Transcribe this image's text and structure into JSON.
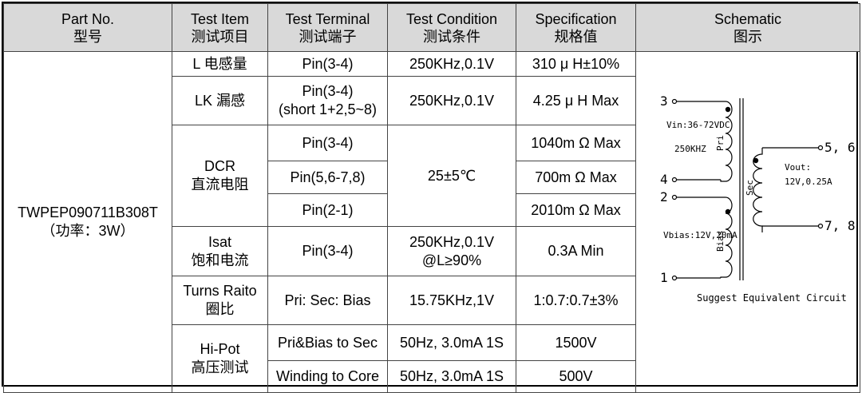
{
  "headers": [
    {
      "en": "Part No.",
      "cn": "型号"
    },
    {
      "en": "Test Item",
      "cn": "测试项目"
    },
    {
      "en": "Test Terminal",
      "cn": "测试端子"
    },
    {
      "en": "Test Condition",
      "cn": "测试条件"
    },
    {
      "en": "Specification",
      "cn": "规格值"
    },
    {
      "en": "Schematic",
      "cn": "图示"
    }
  ],
  "part": {
    "number": "TWPEP090711B308T",
    "power": "（功率：3W）"
  },
  "items": {
    "l": "L 电感量",
    "lk": "LK 漏感",
    "dcr_en": "DCR",
    "dcr_cn": "直流电阻",
    "isat_en": "Isat",
    "isat_cn": "饱和电流",
    "turns_en": "Turns Raito",
    "turns_cn": "圈比",
    "hipot_en": "Hi-Pot",
    "hipot_cn": "高压测试"
  },
  "terminals": {
    "l": "Pin(3-4)",
    "lk1": "Pin(3-4)",
    "lk2": "(short 1+2,5~8)",
    "dcr1": "Pin(3-4)",
    "dcr2": "Pin(5,6-7,8)",
    "dcr3": "Pin(2-1)",
    "isat": "Pin(3-4)",
    "turns": "Pri: Sec: Bias",
    "hipot1": "Pri&Bias to Sec",
    "hipot2": "Winding to Core"
  },
  "conditions": {
    "l": "250KHz,0.1V",
    "lk": "250KHz,0.1V",
    "dcr": "25±5℃",
    "isat1": "250KHz,0.1V",
    "isat2": "@L≥90%",
    "turns": "15.75KHz,1V",
    "hipot1": "50Hz, 3.0mA 1S",
    "hipot2": "50Hz, 3.0mA 1S"
  },
  "specs": {
    "l": "310 μ H±10%",
    "lk": "4.25 μ H Max",
    "dcr1": "1040m Ω Max",
    "dcr2": "700m Ω Max",
    "dcr3": "2010m Ω Max",
    "isat": "0.3A Min",
    "turns": "1:0.7:0.7±3%",
    "hipot1": "1500V",
    "hipot2": "500V"
  },
  "schematic": {
    "pin3": "3",
    "pin4": "4",
    "pin2": "2",
    "pin1": "1",
    "pin56": "5, 6",
    "pin78": "7, 8",
    "vin": "Vin:36-72VDC",
    "freq": "250KHZ",
    "pri": "Pri",
    "sec": "Sec",
    "bias": "Bias",
    "vout": "Vout:",
    "vout_val": "12V,0.25A",
    "vbias": "Vbias:12V,20mA",
    "caption": "Suggest Equivalent Circuit"
  }
}
